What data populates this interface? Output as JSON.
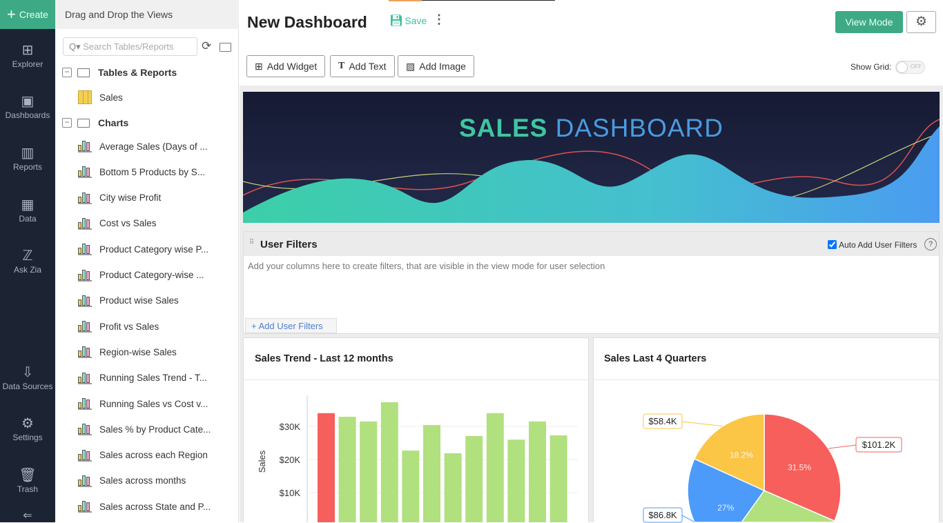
{
  "rail": {
    "create": "Create",
    "items": [
      {
        "label": "Explorer",
        "icon": "explorer-icon"
      },
      {
        "label": "Dashboards",
        "icon": "dashboards-icon"
      },
      {
        "label": "Reports",
        "icon": "reports-icon"
      },
      {
        "label": "Data",
        "icon": "data-icon"
      },
      {
        "label": "Ask Zia",
        "icon": "zia-icon"
      },
      {
        "label": "Data Sources",
        "icon": "data-sources-icon"
      },
      {
        "label": "Settings",
        "icon": "gear-icon"
      },
      {
        "label": "Trash",
        "icon": "trash-icon"
      }
    ]
  },
  "panel": {
    "title": "Drag and Drop the Views",
    "search_placeholder": "Search Tables/Reports",
    "tables_folder": "Tables & Reports",
    "table": "Sales",
    "charts_folder": "Charts",
    "charts": [
      "Average Sales (Days of ...",
      "Bottom 5 Products by S...",
      "City wise Profit",
      "Cost vs Sales",
      "Product Category wise P...",
      "Product Category-wise ...",
      "Product wise Sales",
      "Profit vs Sales",
      "Region-wise Sales",
      "Running Sales Trend - T...",
      "Running Sales vs Cost v...",
      "Sales % by Product Cate...",
      "Sales across each Region",
      "Sales across months",
      "Sales across State and P..."
    ]
  },
  "header": {
    "title": "New Dashboard",
    "save": "Save",
    "view_mode": "View Mode",
    "add_widget": "Add Widget",
    "add_text": "Add Text",
    "add_image": "Add Image",
    "show_grid": "Show Grid:",
    "grid_state": "OFF"
  },
  "banner": {
    "word1": "SALES",
    "word2": "DASHBOARD"
  },
  "filters": {
    "title": "User Filters",
    "auto_add": "Auto Add User Filters",
    "auto_add_checked": true,
    "hint": "Add your columns here to create filters, that are visible in the view mode for user selection",
    "add_button": "+ Add User Filters"
  },
  "colors": {
    "accent": "#3daa85",
    "rail": "#1c2434",
    "bar_highlight": "#f65f5c",
    "bar": "#b1e07f"
  },
  "chart_data": [
    {
      "type": "bar",
      "title": "Sales Trend - Last 12 months",
      "ylabel": "Sales",
      "yticks": [
        "$10K",
        "$20K",
        "$30K"
      ],
      "ylim": [
        0,
        40000
      ],
      "grid": true,
      "values": [
        34000,
        32900,
        31500,
        37300,
        22700,
        30400,
        21900,
        27100,
        34000,
        26000,
        31500,
        27300
      ],
      "highlight_index": 0
    },
    {
      "type": "pie",
      "title": "Sales Last 4 Quarters",
      "slices": [
        {
          "percent": 31.5,
          "label": "31.5%",
          "value": "$101.2K",
          "color": "#f65f5c"
        },
        {
          "percent": 23.3,
          "label": "",
          "value": "",
          "color": "#b1e07f"
        },
        {
          "percent": 27,
          "label": "27%",
          "value": "$86.8K",
          "color": "#4c9bfb"
        },
        {
          "percent": 18.2,
          "label": "18.2%",
          "value": "$58.4K",
          "color": "#fbc545"
        }
      ]
    }
  ]
}
